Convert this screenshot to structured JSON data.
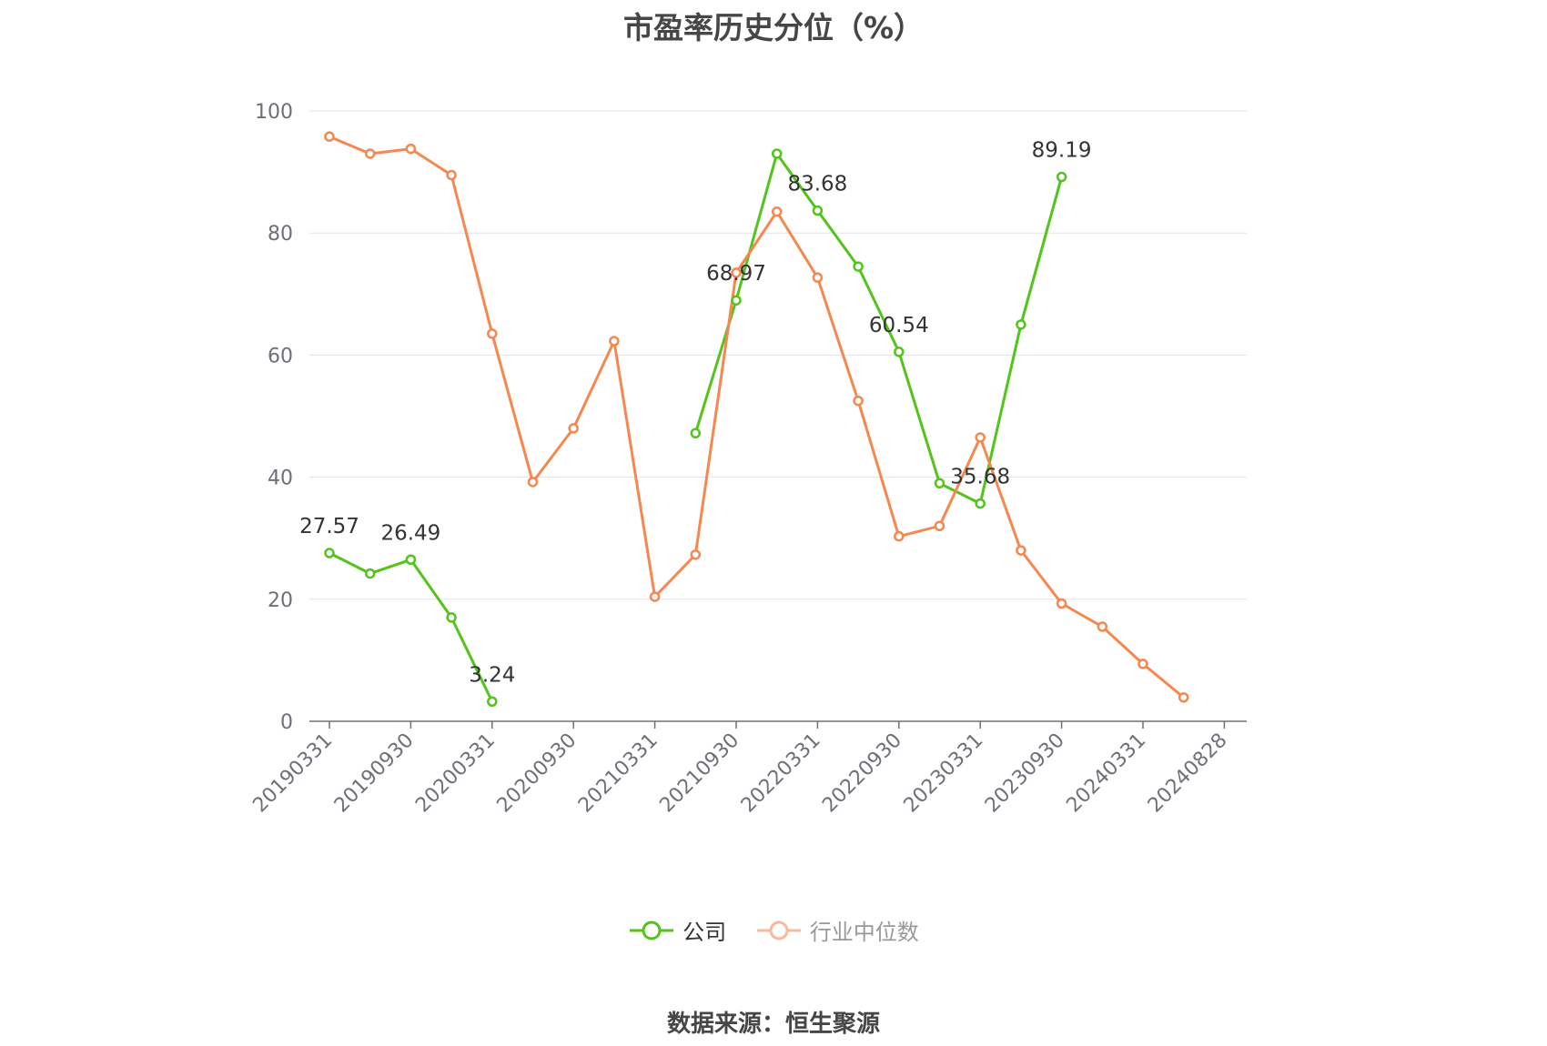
{
  "title": "市盈率历史分位（%）",
  "source": "数据来源：恒生聚源",
  "legend": [
    {
      "name": "公司",
      "color": "#52c41a"
    },
    {
      "name": "行业中位数",
      "color": "#f5874f"
    }
  ],
  "chart_data": {
    "type": "line",
    "x_tick_labels": [
      "20190331",
      "20190930",
      "20200331",
      "20200930",
      "20210331",
      "20210930",
      "20220331",
      "20220930",
      "20230331",
      "20230930",
      "20240331",
      "20240828"
    ],
    "ylim": [
      0,
      100
    ],
    "yticks": [
      0,
      20,
      40,
      60,
      80,
      100
    ],
    "grid": true,
    "legend_position": "bottom",
    "series": [
      {
        "name": "公司",
        "color": "#52c41a",
        "values": [
          27.57,
          24.2,
          26.49,
          17.0,
          3.24,
          null,
          null,
          null,
          null,
          47.2,
          68.97,
          93.0,
          83.68,
          74.5,
          60.54,
          39.0,
          35.68,
          65.0,
          89.19,
          null,
          null,
          null
        ],
        "labels": {
          "0": "27.57",
          "2": "26.49",
          "4": "3.24",
          "10": "68.97",
          "12": "83.68",
          "14": "60.54",
          "16": "35.68",
          "18": "89.19"
        }
      },
      {
        "name": "行业中位数",
        "color": "#f5874f",
        "values": [
          95.8,
          93.0,
          93.8,
          89.5,
          63.5,
          39.2,
          48.0,
          62.3,
          20.4,
          27.3,
          73.5,
          83.5,
          72.7,
          52.5,
          30.3,
          32.0,
          46.5,
          28.0,
          19.3,
          15.5,
          9.4,
          3.9
        ],
        "labels": {}
      }
    ]
  }
}
